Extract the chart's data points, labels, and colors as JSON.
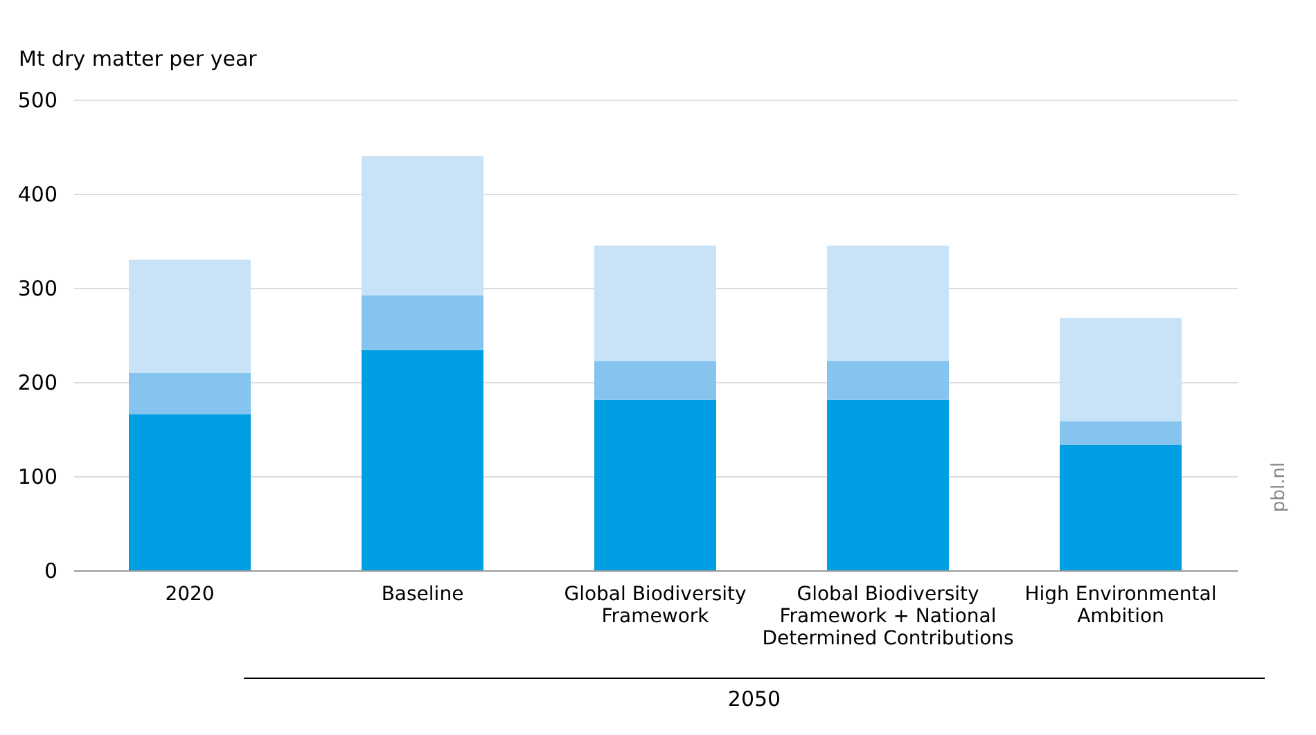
{
  "chart_data": {
    "type": "bar",
    "stacked": true,
    "ylabel": "Mt dry matter per year",
    "categories": [
      "2020",
      "Baseline",
      "Global Biodiversity Framework",
      "Global Biodiversity Framework + National Determined Contributions",
      "High Environmental Ambition"
    ],
    "series": [
      {
        "color": "#009fe3",
        "values": [
          166,
          234,
          181,
          181,
          133
        ]
      },
      {
        "color": "#85c4ef",
        "values": [
          44,
          58,
          41,
          41,
          25
        ]
      },
      {
        "color": "#c8e3f8",
        "values": [
          120,
          148,
          123,
          123,
          110
        ]
      }
    ],
    "ylim": [
      0,
      500
    ],
    "yticks": [
      0,
      100,
      200,
      300,
      400,
      500
    ],
    "grid": "y",
    "legend": false,
    "annotations": [
      "2050",
      "pbl.nl"
    ]
  }
}
